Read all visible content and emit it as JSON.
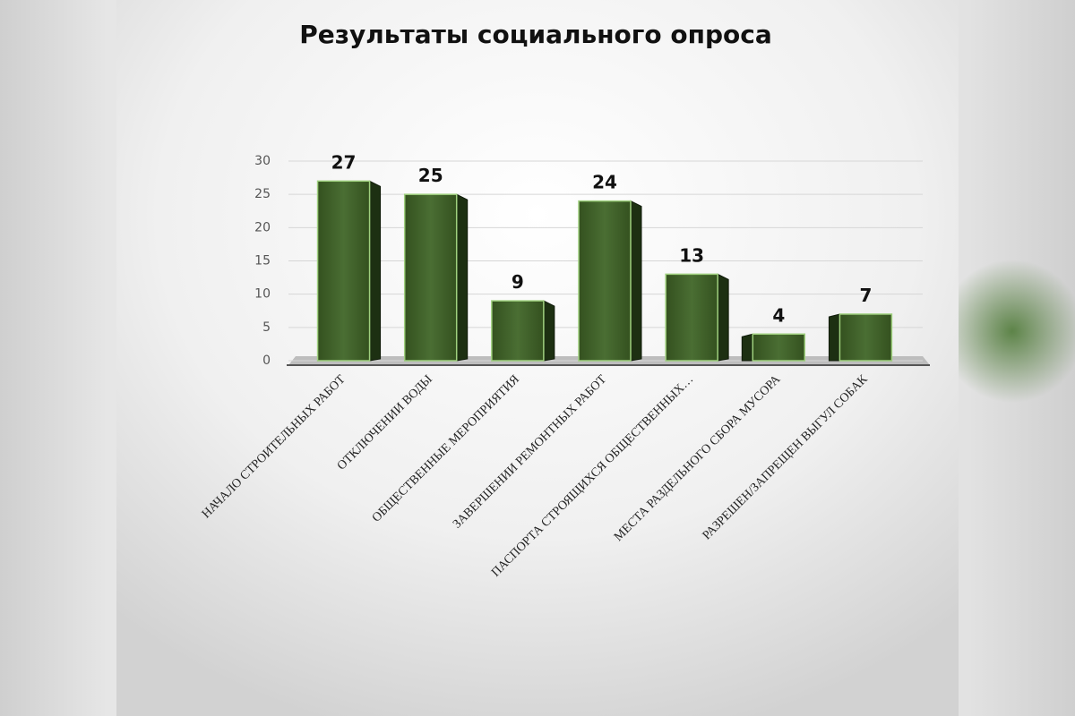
{
  "chart_data": {
    "type": "bar",
    "title": "Результаты социального опроса",
    "categories": [
      "НАЧАЛО СТРОИТЕЛЬНЫХ РАБОТ",
      "ОТКЛЮЧЕНИИ ВОДЫ",
      "ОБЩЕСТВЕННЫЕ МЕРОПРИЯТИЯ",
      "ЗАВЕРШЕНИИ РЕМОНТНЫХ РАБОТ",
      "ПАСПОРТА СТРОЯЩИХСЯ ОБЩЕСТВЕННЫХ…",
      "МЕСТА РАЗДЕЛЬНОГО СБОРА МУСОРА",
      "РАЗРЕШЕН/ЗАПРЕЩЕН ВЫГУЛ СОБАК"
    ],
    "values": [
      27,
      25,
      9,
      24,
      13,
      4,
      7
    ],
    "color": "#3f6129",
    "ylim": [
      0,
      30
    ],
    "yticks": [
      0,
      5,
      10,
      15,
      20,
      25,
      30
    ],
    "grid": true
  }
}
